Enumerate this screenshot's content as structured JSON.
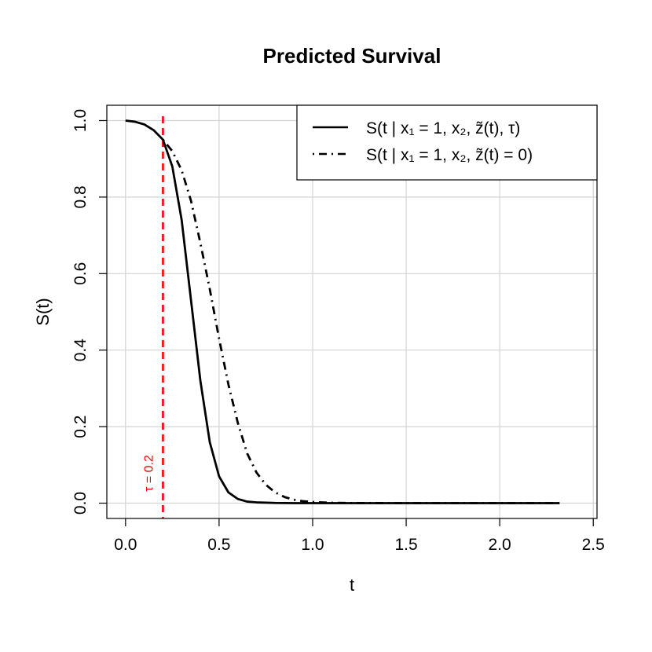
{
  "chart_data": {
    "type": "line",
    "title": "Predicted Survival",
    "xlabel": "t",
    "ylabel": "S(t)",
    "xlim": [
      -0.1,
      2.52
    ],
    "ylim": [
      -0.04,
      1.04
    ],
    "x_ticks": [
      0,
      0.5,
      1,
      1.5,
      2,
      2.5
    ],
    "x_tick_labels": [
      "0.0",
      "0.5",
      "1.0",
      "1.5",
      "2.0",
      "2.5"
    ],
    "y_ticks": [
      0,
      0.2,
      0.4,
      0.6,
      0.8,
      1
    ],
    "y_tick_labels": [
      "0.0",
      "0.2",
      "0.4",
      "0.6",
      "0.8",
      "1.0"
    ],
    "grid": true,
    "legend_position": "top-right",
    "reference_line": {
      "x": 0.2,
      "label": "τ = 0.2",
      "color": "#ff0000",
      "style": "dashed"
    },
    "series": [
      {
        "name": "S(t | x₁ = 1, x₂, z̃(t), τ)",
        "style": "solid",
        "color": "#000000",
        "x": [
          0,
          0.05,
          0.1,
          0.15,
          0.2,
          0.25,
          0.3,
          0.35,
          0.4,
          0.45,
          0.5,
          0.55,
          0.6,
          0.65,
          0.7,
          0.8,
          0.9,
          1.0,
          1.5,
          2.0,
          2.32
        ],
        "y": [
          1.0,
          0.997,
          0.99,
          0.975,
          0.95,
          0.88,
          0.74,
          0.53,
          0.32,
          0.16,
          0.07,
          0.028,
          0.011,
          0.004,
          0.002,
          0.0005,
          0.0001,
          0,
          0,
          0,
          0
        ]
      },
      {
        "name": "S(t | x₁ = 1, x₂, z̃(t) = 0)",
        "style": "dotdash",
        "color": "#000000",
        "x": [
          0.2,
          0.25,
          0.3,
          0.35,
          0.4,
          0.45,
          0.5,
          0.55,
          0.6,
          0.65,
          0.7,
          0.75,
          0.8,
          0.85,
          0.9,
          0.95,
          1.0,
          1.1,
          1.2,
          1.5,
          2.0,
          2.32
        ],
        "y": [
          0.95,
          0.92,
          0.87,
          0.79,
          0.68,
          0.56,
          0.43,
          0.31,
          0.21,
          0.13,
          0.08,
          0.048,
          0.028,
          0.016,
          0.009,
          0.005,
          0.003,
          0.001,
          0.0003,
          0,
          0,
          0
        ]
      }
    ]
  }
}
